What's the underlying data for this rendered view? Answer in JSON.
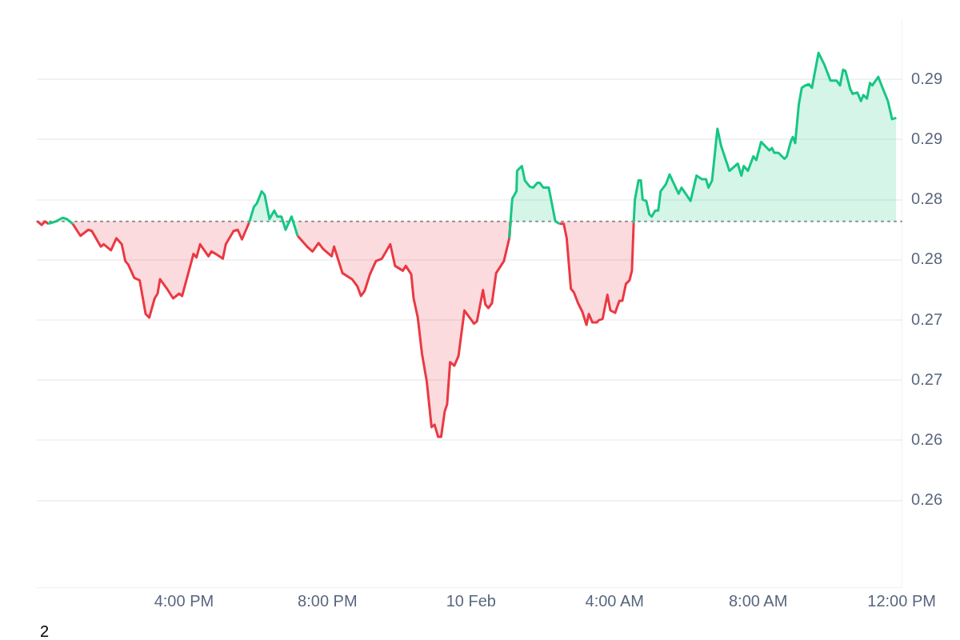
{
  "chart_data": {
    "type": "area",
    "x": [
      "--02-09T11:55",
      "--02-09T12:02",
      "--02-09T12:08",
      "--02-09T12:13",
      "--02-09T12:26",
      "--02-09T12:37",
      "--02-09T12:44",
      "--02-09T12:54",
      "--02-09T13:07",
      "--02-09T13:20",
      "--02-09T13:26",
      "--02-09T13:41",
      "--02-09T13:46",
      "--02-09T13:58",
      "--02-09T14:07",
      "--02-09T14:16",
      "--02-09T14:22",
      "--02-09T14:27",
      "--02-09T14:37",
      "--02-09T14:46",
      "--02-09T14:56",
      "--02-09T15:02",
      "--02-09T15:11",
      "--02-09T15:16",
      "--02-09T15:20",
      "--02-09T15:33",
      "--02-09T15:42",
      "--02-09T15:52",
      "--02-09T15:57",
      "--02-09T16:16",
      "--02-09T16:21",
      "--02-09T16:27",
      "--02-09T16:41",
      "--02-09T16:46",
      "--02-09T16:53",
      "--02-09T17:05",
      "--02-09T17:10",
      "--02-09T17:23",
      "--02-09T17:30",
      "--02-09T17:37",
      "--02-09T17:49",
      "--02-09T17:57",
      "--02-09T18:02",
      "--02-09T18:10",
      "--02-09T18:15",
      "--02-09T18:23",
      "--02-09T18:31",
      "--02-09T18:36",
      "--02-09T18:43",
      "--02-09T18:50",
      "--02-09T19:00",
      "--02-09T19:10",
      "--02-09T19:26",
      "--02-09T19:35",
      "--02-09T19:45",
      "--02-09T19:53",
      "--02-09T20:07",
      "--02-09T20:11",
      "--02-09T20:25",
      "--02-09T20:41",
      "--02-09T20:50",
      "--02-09T20:56",
      "--02-09T21:02",
      "--02-09T21:11",
      "--02-09T21:21",
      "--02-09T21:31",
      "--02-09T21:45",
      "--02-09T21:53",
      "--02-09T22:06",
      "--02-09T22:11",
      "--02-09T22:20",
      "--02-09T22:24",
      "--02-09T22:31",
      "--02-09T22:38",
      "--02-09T22:46",
      "--02-09T22:54",
      "--02-09T22:59",
      "--02-09T23:05",
      "--02-09T23:10",
      "--02-09T23:16",
      "--02-09T23:20",
      "--02-09T23:25",
      "--02-09T23:32",
      "--02-09T23:39",
      "--02-09T23:49",
      "--02-10T00:05",
      "--02-10T00:10",
      "--02-10T00:20",
      "--02-10T00:24",
      "--02-10T00:29",
      "--02-10T00:35",
      "--02-10T00:42",
      "--02-10T00:55",
      "--02-10T01:04",
      "--02-10T01:06",
      "--02-10T01:09",
      "--02-10T01:16",
      "--02-10T01:17",
      "--02-10T01:25",
      "--02-10T01:30",
      "--02-10T01:38",
      "--02-10T01:44",
      "--02-10T01:51",
      "--02-10T01:55",
      "--02-10T02:01",
      "--02-10T02:10",
      "--02-10T02:21",
      "--02-10T02:28",
      "--02-10T02:35",
      "--02-10T02:40",
      "--02-10T02:47",
      "--02-10T02:52",
      "--02-10T02:59",
      "--02-10T03:06",
      "--02-10T03:13",
      "--02-10T03:17",
      "--02-10T03:23",
      "--02-10T03:30",
      "--02-10T03:34",
      "--02-10T03:40",
      "--02-10T03:48",
      "--02-10T03:53",
      "--02-10T04:01",
      "--02-10T04:08",
      "--02-10T04:13",
      "--02-10T04:19",
      "--02-10T04:25",
      "--02-10T04:29",
      "--02-10T04:32",
      "--02-10T04:34",
      "--02-10T04:40",
      "--02-10T04:44",
      "--02-10T04:47",
      "--02-10T04:53",
      "--02-10T04:58",
      "--02-10T05:02",
      "--02-10T05:08",
      "--02-10T05:13",
      "--02-10T05:17",
      "--02-10T05:26",
      "--02-10T05:32",
      "--02-10T05:47",
      "--02-10T05:52",
      "--02-10T06:07",
      "--02-10T06:17",
      "--02-10T06:26",
      "--02-10T06:33",
      "--02-10T06:37",
      "--02-10T06:43",
      "--02-10T06:52",
      "--02-10T06:58",
      "--02-10T07:12",
      "--02-10T07:26",
      "--02-10T07:32",
      "--02-10T07:36",
      "--02-10T07:43",
      "--02-10T07:52",
      "--02-10T07:57",
      "--02-10T08:05",
      "--02-10T08:19",
      "--02-10T08:23",
      "--02-10T08:27",
      "--02-10T08:34",
      "--02-10T08:44",
      "--02-10T08:48",
      "--02-10T08:55",
      "--02-10T08:58",
      "--02-10T09:02",
      "--02-10T09:08",
      "--02-10T09:13",
      "--02-10T09:19",
      "--02-10T09:25",
      "--02-10T09:30",
      "--02-10T09:41",
      "--02-10T09:51",
      "--02-10T10:01",
      "--02-10T10:11",
      "--02-10T10:17",
      "--02-10T10:22",
      "--02-10T10:26",
      "--02-10T10:34",
      "--02-10T10:38",
      "--02-10T10:46",
      "--02-10T10:52",
      "--02-10T10:56",
      "--02-10T11:02",
      "--02-10T11:07",
      "--02-10T11:11",
      "--02-10T11:21",
      "--02-10T11:28",
      "--02-10T11:37",
      "--02-10T11:44",
      "--02-10T11:51"
    ],
    "series": [
      {
        "color": "#16c784",
        "values": [
          null,
          null,
          null,
          0.283,
          0.2832,
          0.2835,
          0.2834,
          0.283,
          null,
          null,
          null,
          null,
          null,
          null,
          null,
          null,
          null,
          null,
          null,
          null,
          null,
          null,
          null,
          null,
          null,
          null,
          null,
          null,
          null,
          null,
          null,
          null,
          null,
          null,
          null,
          null,
          null,
          null,
          null,
          null,
          0.2831,
          0.2844,
          0.2847,
          0.2857,
          0.2854,
          0.2834,
          0.2841,
          0.2836,
          0.2836,
          0.2825,
          0.2836,
          0.282,
          null,
          null,
          null,
          null,
          null,
          null,
          null,
          null,
          null,
          null,
          null,
          null,
          null,
          null,
          null,
          null,
          null,
          null,
          null,
          null,
          null,
          null,
          null,
          null,
          null,
          null,
          null,
          null,
          null,
          null,
          null,
          null,
          null,
          null,
          null,
          null,
          null,
          null,
          null,
          null,
          null,
          0.2818,
          0.2832,
          0.2851,
          0.2857,
          0.2874,
          0.2878,
          0.2866,
          0.2861,
          0.286,
          0.2864,
          0.2864,
          0.286,
          0.286,
          0.2832,
          0.283,
          null,
          null,
          null,
          null,
          null,
          null,
          null,
          null,
          null,
          null,
          null,
          null,
          null,
          null,
          null,
          null,
          null,
          null,
          null,
          null,
          0.2831,
          0.285,
          0.2866,
          0.2866,
          0.285,
          0.2849,
          0.2838,
          0.2836,
          0.2841,
          0.2841,
          0.2857,
          0.2863,
          0.2871,
          0.2855,
          0.286,
          0.2849,
          0.287,
          0.2867,
          0.2867,
          0.286,
          0.2866,
          0.2909,
          0.2895,
          0.2874,
          0.288,
          0.287,
          0.2878,
          0.2874,
          0.2886,
          0.2883,
          0.2898,
          0.2891,
          0.2893,
          0.2889,
          0.2889,
          0.2884,
          0.2886,
          0.2899,
          0.2902,
          0.2897,
          0.2929,
          0.2943,
          0.2945,
          0.2946,
          0.2943,
          0.2972,
          0.2962,
          0.2949,
          0.2949,
          0.2945,
          0.2958,
          0.2957,
          0.2942,
          0.2938,
          0.2939,
          0.2932,
          0.2937,
          0.2934,
          0.2947,
          0.2945,
          0.2952,
          0.2943,
          0.2932,
          0.2917,
          0.2918
        ]
      },
      {
        "color": "#ea3943",
        "values": [
          0.2832,
          0.2829,
          0.2832,
          0.283,
          null,
          null,
          null,
          0.283,
          0.282,
          0.2825,
          0.2824,
          0.2811,
          0.2813,
          0.2808,
          0.2818,
          0.2813,
          0.2799,
          0.2796,
          0.2785,
          0.2783,
          0.2755,
          0.2752,
          0.2768,
          0.2772,
          0.2784,
          0.2775,
          0.2768,
          0.2772,
          0.277,
          0.2805,
          0.2802,
          0.2813,
          0.2803,
          0.2807,
          0.2805,
          0.2801,
          0.2813,
          0.2824,
          0.2825,
          0.2817,
          0.2831,
          null,
          null,
          null,
          null,
          null,
          null,
          null,
          null,
          null,
          null,
          0.282,
          0.2811,
          0.2807,
          0.2814,
          0.2809,
          0.2803,
          0.2811,
          0.2789,
          0.2784,
          0.2778,
          0.277,
          0.2774,
          0.2788,
          0.2799,
          0.2801,
          0.2813,
          0.2795,
          0.2791,
          0.2795,
          0.2788,
          0.2768,
          0.2752,
          0.2722,
          0.2699,
          0.2661,
          0.2663,
          0.2653,
          0.2653,
          0.2674,
          0.268,
          0.2715,
          0.2712,
          0.272,
          0.2758,
          0.2747,
          0.2749,
          0.2775,
          0.2763,
          0.276,
          0.2764,
          0.2789,
          0.2799,
          0.2818,
          0.2832,
          null,
          null,
          null,
          null,
          null,
          null,
          null,
          null,
          null,
          null,
          null,
          null,
          0.283,
          0.283,
          0.2818,
          0.2776,
          0.2773,
          0.2764,
          0.2757,
          0.2746,
          0.2755,
          0.2748,
          0.2748,
          0.275,
          0.2751,
          0.2771,
          0.2758,
          0.2756,
          0.2766,
          0.2766,
          0.278,
          0.2783,
          0.2791,
          0.2831,
          null,
          null,
          null,
          null,
          null,
          null,
          null,
          null,
          null,
          null,
          null,
          null,
          null,
          null,
          null,
          null,
          null,
          null,
          null,
          null,
          null,
          null,
          null,
          null,
          null,
          null,
          null,
          null,
          null,
          null,
          null,
          null,
          null,
          null,
          null,
          null,
          null,
          null,
          null,
          null,
          null,
          null,
          null,
          null,
          null,
          null,
          null,
          null,
          null,
          null,
          null,
          null,
          null,
          null,
          null,
          null,
          null,
          null,
          null,
          null,
          null,
          null,
          null,
          null
        ]
      }
    ],
    "xlim": [
      "--02-09T11:54",
      "--02-10T12:00"
    ],
    "xticks": [
      {
        "value": "--02-09T16:00",
        "label": "4:00 PM"
      },
      {
        "value": "--02-09T20:00",
        "label": "8:00 PM"
      },
      {
        "value": "--02-10T00:00",
        "label": "10 Feb"
      },
      {
        "value": "--02-10T04:00",
        "label": "4:00 AM"
      },
      {
        "value": "--02-10T08:00",
        "label": "8:00 AM"
      },
      {
        "value": "--02-10T12:00",
        "label": "12:00 PM"
      }
    ],
    "ylim": [
      0.2528,
      0.3
    ],
    "yticks": [
      {
        "value": 0.26,
        "label": "0.26"
      },
      {
        "value": 0.265,
        "label": "0.26"
      },
      {
        "value": 0.27,
        "label": "0.27"
      },
      {
        "value": 0.275,
        "label": "0.27"
      },
      {
        "value": 0.28,
        "label": "0.28"
      },
      {
        "value": 0.285,
        "label": "0.28"
      },
      {
        "value": 0.29,
        "label": "0.29"
      },
      {
        "value": 0.295,
        "label": "0.29"
      }
    ],
    "ref_lines": [
      {
        "axis": "y",
        "value": 0.2832,
        "color": "#8c8c99",
        "line_style": "dotted"
      }
    ],
    "grid": "y",
    "legend": false,
    "marker": "none",
    "line_style": "solid",
    "annotations": [
      "2"
    ]
  }
}
